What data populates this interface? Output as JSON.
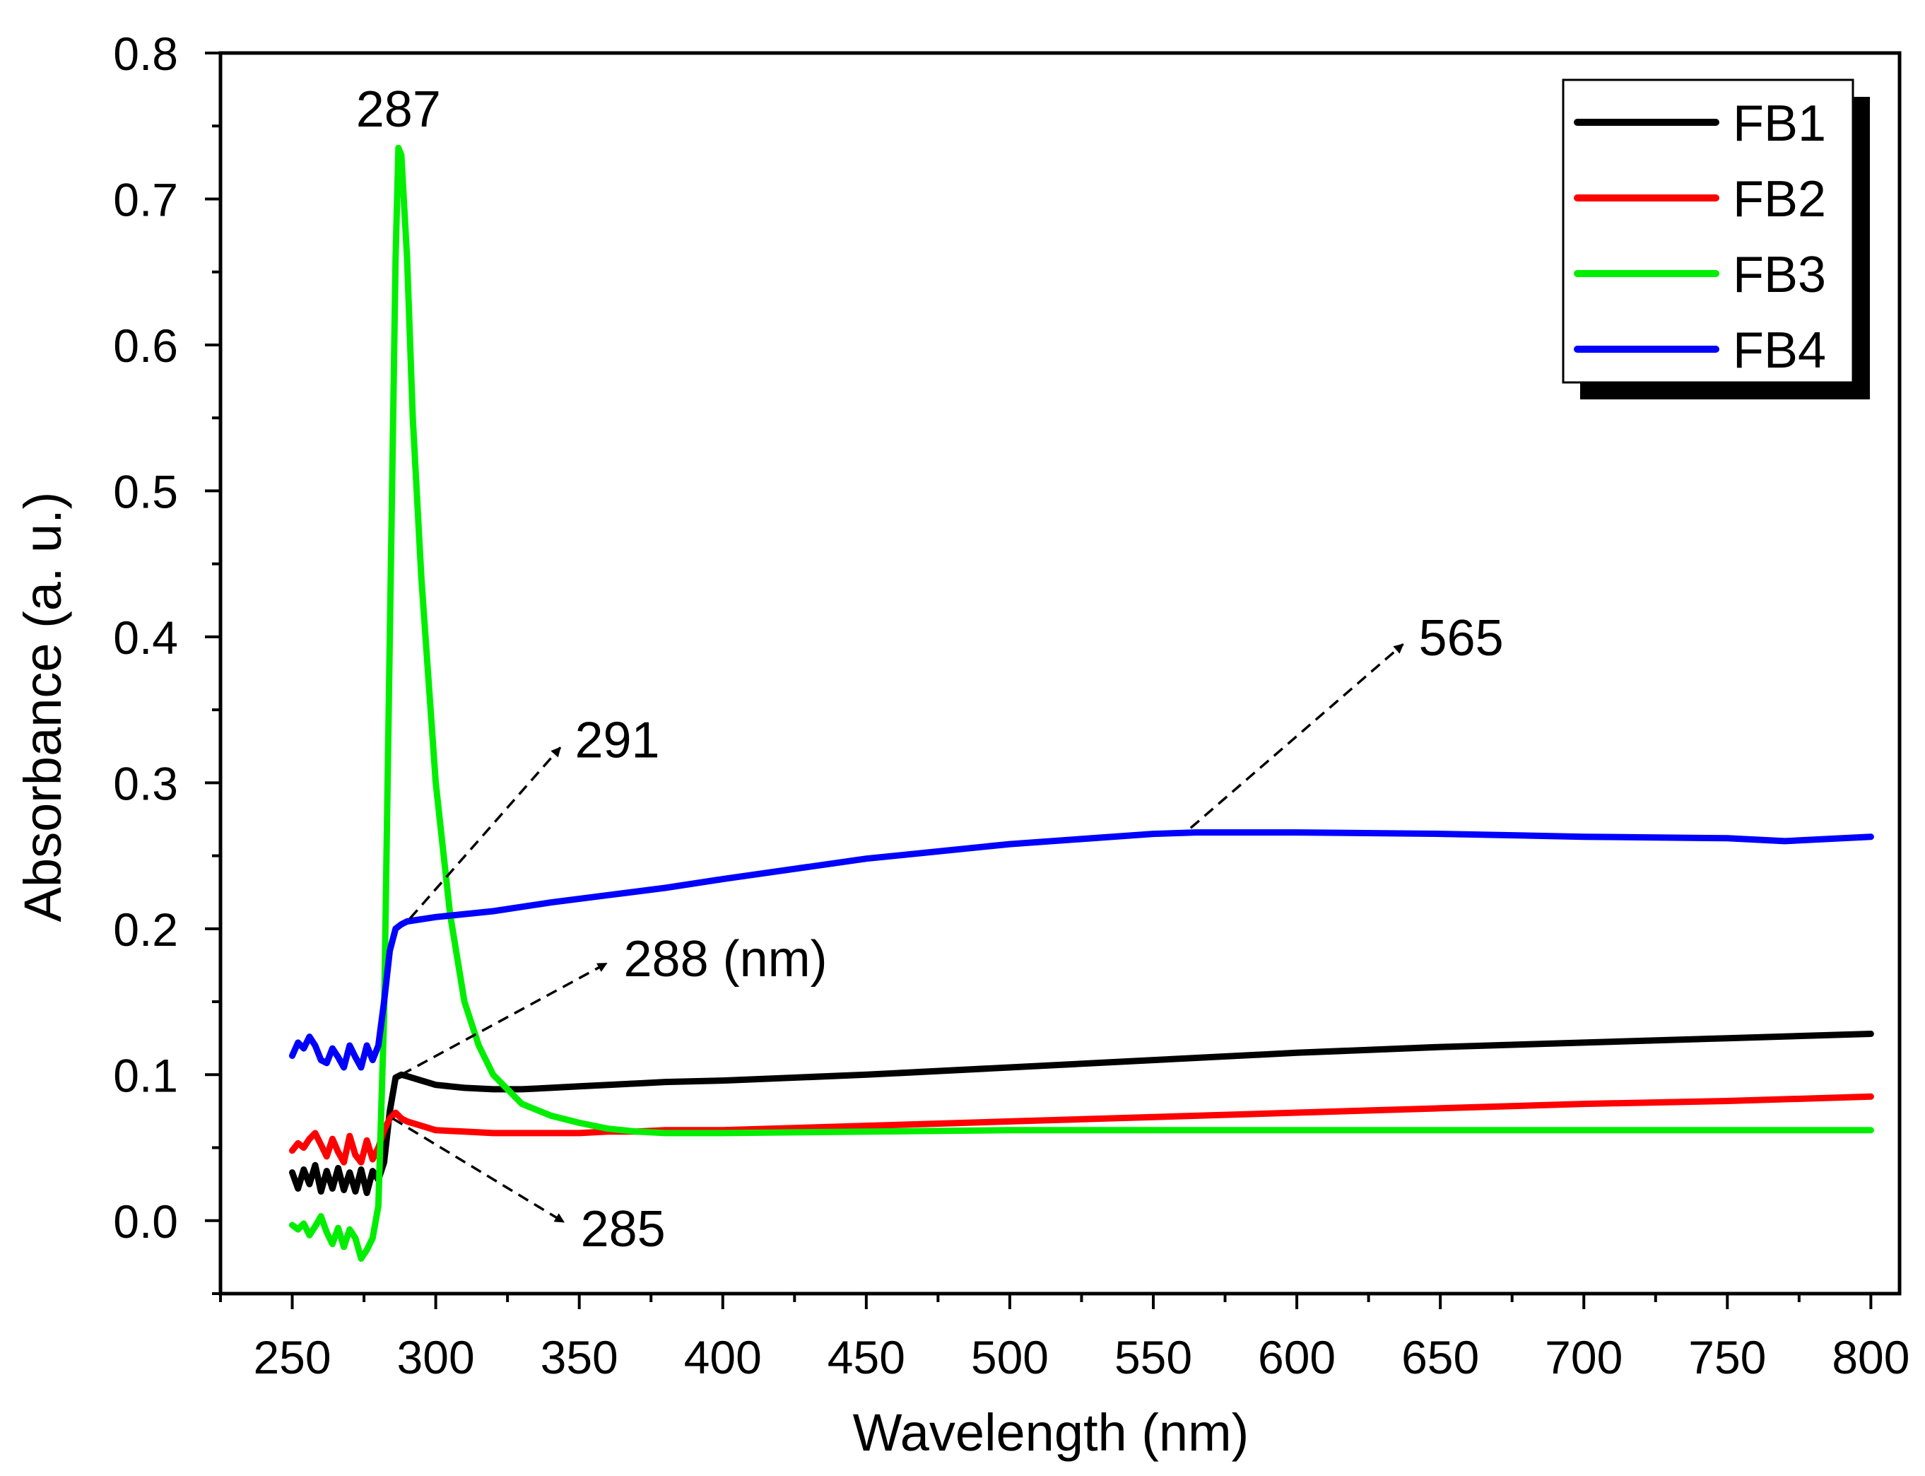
{
  "chart_data": {
    "type": "line",
    "title": "",
    "xlabel": "Wavelength (nm)",
    "ylabel": "Absorbance (a. u.)",
    "xlim": [
      225,
      810
    ],
    "ylim": [
      -0.05,
      0.8
    ],
    "xticks": [
      250,
      300,
      350,
      400,
      450,
      500,
      550,
      600,
      650,
      700,
      750,
      800
    ],
    "xtick_labels": [
      "250",
      "300",
      "350",
      "400",
      "450",
      "500",
      "550",
      "600",
      "650",
      "700",
      "750",
      "800"
    ],
    "yticks": [
      0.0,
      0.1,
      0.2,
      0.3,
      0.4,
      0.5,
      0.6,
      0.7,
      0.8
    ],
    "ytick_labels": [
      "0.0",
      "0.1",
      "0.2",
      "0.3",
      "0.4",
      "0.5",
      "0.6",
      "0.7",
      "0.8"
    ],
    "grid": false,
    "legend_position": "top-right",
    "series": [
      {
        "name": "FB1",
        "color": "#000000",
        "points": [
          [
            250,
            0.033
          ],
          [
            252,
            0.022
          ],
          [
            254,
            0.035
          ],
          [
            256,
            0.025
          ],
          [
            258,
            0.038
          ],
          [
            260,
            0.02
          ],
          [
            262,
            0.034
          ],
          [
            264,
            0.022
          ],
          [
            266,
            0.036
          ],
          [
            268,
            0.021
          ],
          [
            270,
            0.033
          ],
          [
            272,
            0.02
          ],
          [
            274,
            0.035
          ],
          [
            276,
            0.019
          ],
          [
            278,
            0.034
          ],
          [
            280,
            0.028
          ],
          [
            282,
            0.04
          ],
          [
            284,
            0.075
          ],
          [
            286,
            0.098
          ],
          [
            288,
            0.1
          ],
          [
            290,
            0.099
          ],
          [
            295,
            0.096
          ],
          [
            300,
            0.093
          ],
          [
            310,
            0.091
          ],
          [
            320,
            0.09
          ],
          [
            330,
            0.09
          ],
          [
            340,
            0.091
          ],
          [
            350,
            0.092
          ],
          [
            360,
            0.093
          ],
          [
            370,
            0.094
          ],
          [
            380,
            0.095
          ],
          [
            400,
            0.096
          ],
          [
            450,
            0.1
          ],
          [
            500,
            0.105
          ],
          [
            550,
            0.11
          ],
          [
            600,
            0.115
          ],
          [
            650,
            0.119
          ],
          [
            700,
            0.122
          ],
          [
            750,
            0.125
          ],
          [
            800,
            0.128
          ]
        ]
      },
      {
        "name": "FB2",
        "color": "#ff0000",
        "points": [
          [
            250,
            0.048
          ],
          [
            252,
            0.053
          ],
          [
            254,
            0.05
          ],
          [
            256,
            0.056
          ],
          [
            258,
            0.06
          ],
          [
            260,
            0.052
          ],
          [
            262,
            0.044
          ],
          [
            264,
            0.056
          ],
          [
            266,
            0.047
          ],
          [
            268,
            0.04
          ],
          [
            270,
            0.058
          ],
          [
            272,
            0.045
          ],
          [
            274,
            0.04
          ],
          [
            276,
            0.055
          ],
          [
            278,
            0.042
          ],
          [
            280,
            0.05
          ],
          [
            282,
            0.062
          ],
          [
            284,
            0.07
          ],
          [
            286,
            0.074
          ],
          [
            288,
            0.07
          ],
          [
            290,
            0.068
          ],
          [
            295,
            0.065
          ],
          [
            300,
            0.062
          ],
          [
            310,
            0.061
          ],
          [
            320,
            0.06
          ],
          [
            330,
            0.06
          ],
          [
            340,
            0.06
          ],
          [
            350,
            0.06
          ],
          [
            360,
            0.061
          ],
          [
            370,
            0.061
          ],
          [
            380,
            0.062
          ],
          [
            400,
            0.062
          ],
          [
            450,
            0.065
          ],
          [
            500,
            0.068
          ],
          [
            550,
            0.071
          ],
          [
            600,
            0.074
          ],
          [
            650,
            0.077
          ],
          [
            700,
            0.08
          ],
          [
            750,
            0.082
          ],
          [
            800,
            0.085
          ]
        ]
      },
      {
        "name": "FB3",
        "color": "#00ee00",
        "points": [
          [
            250,
            -0.003
          ],
          [
            252,
            -0.006
          ],
          [
            254,
            -0.002
          ],
          [
            256,
            -0.01
          ],
          [
            258,
            -0.004
          ],
          [
            260,
            0.003
          ],
          [
            262,
            -0.008
          ],
          [
            264,
            -0.016
          ],
          [
            266,
            -0.005
          ],
          [
            268,
            -0.018
          ],
          [
            270,
            -0.006
          ],
          [
            272,
            -0.012
          ],
          [
            274,
            -0.026
          ],
          [
            276,
            -0.02
          ],
          [
            278,
            -0.012
          ],
          [
            280,
            0.01
          ],
          [
            282,
            0.14
          ],
          [
            284,
            0.4
          ],
          [
            286,
            0.66
          ],
          [
            287,
            0.735
          ],
          [
            288,
            0.73
          ],
          [
            290,
            0.66
          ],
          [
            292,
            0.55
          ],
          [
            295,
            0.44
          ],
          [
            300,
            0.3
          ],
          [
            305,
            0.21
          ],
          [
            310,
            0.15
          ],
          [
            315,
            0.12
          ],
          [
            320,
            0.1
          ],
          [
            330,
            0.08
          ],
          [
            340,
            0.072
          ],
          [
            350,
            0.067
          ],
          [
            360,
            0.063
          ],
          [
            370,
            0.061
          ],
          [
            380,
            0.06
          ],
          [
            400,
            0.06
          ],
          [
            500,
            0.062
          ],
          [
            600,
            0.062
          ],
          [
            700,
            0.062
          ],
          [
            800,
            0.062
          ]
        ]
      },
      {
        "name": "FB4",
        "color": "#0000ff",
        "points": [
          [
            250,
            0.113
          ],
          [
            252,
            0.122
          ],
          [
            254,
            0.118
          ],
          [
            256,
            0.126
          ],
          [
            258,
            0.12
          ],
          [
            260,
            0.11
          ],
          [
            262,
            0.108
          ],
          [
            264,
            0.118
          ],
          [
            266,
            0.112
          ],
          [
            268,
            0.105
          ],
          [
            270,
            0.12
          ],
          [
            272,
            0.112
          ],
          [
            274,
            0.105
          ],
          [
            276,
            0.12
          ],
          [
            278,
            0.11
          ],
          [
            280,
            0.12
          ],
          [
            282,
            0.15
          ],
          [
            284,
            0.185
          ],
          [
            286,
            0.2
          ],
          [
            288,
            0.203
          ],
          [
            290,
            0.205
          ],
          [
            300,
            0.208
          ],
          [
            320,
            0.212
          ],
          [
            340,
            0.218
          ],
          [
            360,
            0.223
          ],
          [
            380,
            0.228
          ],
          [
            400,
            0.234
          ],
          [
            450,
            0.248
          ],
          [
            500,
            0.258
          ],
          [
            550,
            0.265
          ],
          [
            565,
            0.266
          ],
          [
            600,
            0.266
          ],
          [
            650,
            0.265
          ],
          [
            700,
            0.263
          ],
          [
            750,
            0.262
          ],
          [
            770,
            0.26
          ],
          [
            800,
            0.263
          ]
        ]
      }
    ],
    "annotations": [
      {
        "text": "287",
        "x": 287,
        "y": 0.735,
        "arrow": false
      },
      {
        "text": "291",
        "x": 291,
        "y": 0.207,
        "label_x": 346,
        "label_y": 0.33,
        "arrow": true
      },
      {
        "text": "288 (nm)",
        "x": 288,
        "y": 0.1,
        "label_x": 363,
        "label_y": 0.18,
        "arrow": true
      },
      {
        "text": "285",
        "x": 285,
        "y": 0.07,
        "label_x": 348,
        "label_y": -0.005,
        "arrow": true
      },
      {
        "text": "565",
        "x": 563,
        "y": 0.269,
        "label_x": 640,
        "label_y": 0.4,
        "arrow": true
      }
    ]
  }
}
